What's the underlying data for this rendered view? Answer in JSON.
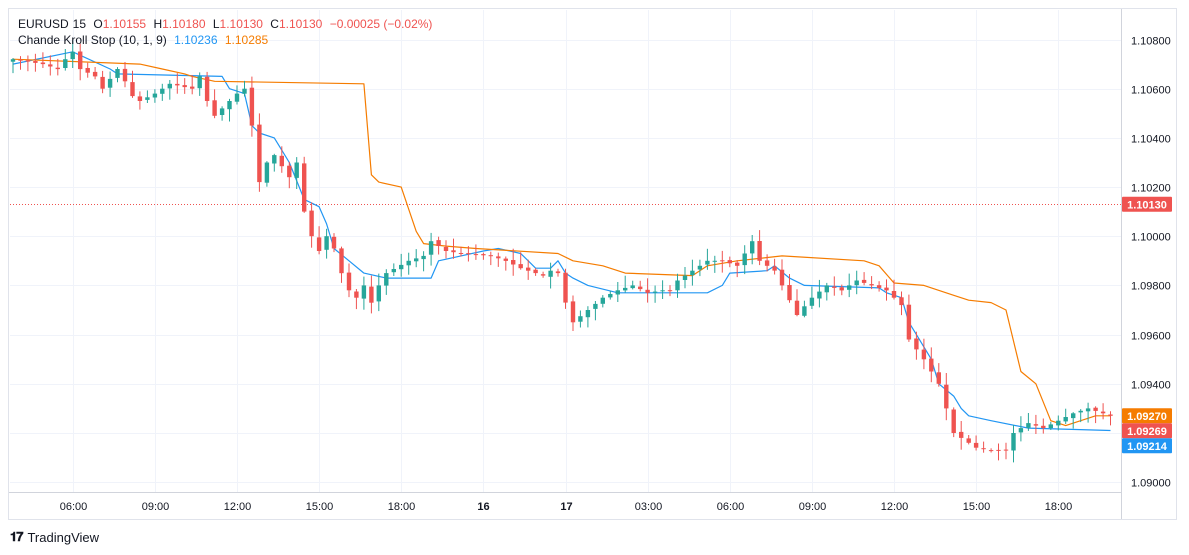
{
  "header": {
    "symbol": "EURUSD",
    "interval": "15",
    "open_label": "O",
    "open": "1.10155",
    "high_label": "H",
    "high": "1.10180",
    "low_label": "L",
    "low": "1.10130",
    "close_label": "C",
    "close": "1.10130",
    "change": "−0.00025 (−0.02%)"
  },
  "indicator": {
    "name": "Chande Kroll Stop (10, 1, 9)",
    "stop_long_value": "1.10236",
    "stop_short_value": "1.10285"
  },
  "branding": {
    "name": "TradingView",
    "icon": "tv-logo-icon"
  },
  "colors": {
    "up": "#26a69a",
    "down": "#ef5350",
    "stop_long": "#2196f3",
    "stop_short": "#f57c00",
    "crosshair_price": "#ef5350"
  },
  "chart_data": {
    "type": "candlestick",
    "ylim": [
      1.0896,
      1.1092
    ],
    "yticks": [
      1.108,
      1.106,
      1.104,
      1.102,
      1.1,
      1.098,
      1.096,
      1.094,
      1.092,
      1.09
    ],
    "ytick_labels": [
      "1.10800",
      "1.10600",
      "1.10400",
      "1.10200",
      "1.10000",
      "1.09800",
      "1.09600",
      "1.09400",
      "1.09200",
      "1.09000"
    ],
    "xlim": [
      0,
      148
    ],
    "xticks": [
      {
        "index": 8,
        "label": "06:00",
        "bold": false
      },
      {
        "index": 19,
        "label": "09:00",
        "bold": false
      },
      {
        "index": 30,
        "label": "12:00",
        "bold": false
      },
      {
        "index": 41,
        "label": "15:00",
        "bold": false
      },
      {
        "index": 52,
        "label": "18:00",
        "bold": false
      },
      {
        "index": 63,
        "label": "16",
        "bold": true
      },
      {
        "index": 74,
        "label": "17",
        "bold": true
      },
      {
        "index": 85,
        "label": "03:00",
        "bold": false
      },
      {
        "index": 96,
        "label": "06:00",
        "bold": false
      },
      {
        "index": 107,
        "label": "09:00",
        "bold": false
      },
      {
        "index": 118,
        "label": "12:00",
        "bold": false
      },
      {
        "index": 129,
        "label": "15:00",
        "bold": false
      },
      {
        "index": 140,
        "label": "18:00",
        "bold": false
      }
    ],
    "crosshair_price": 1.1013,
    "crosshair_label": "1.10130",
    "price_labels": [
      {
        "label": "1.09270",
        "value": 1.0927,
        "color": "#f57c00"
      },
      {
        "label": "1.09269",
        "value": 1.09269,
        "color": "#ef5350"
      },
      {
        "label": "1.09214",
        "value": 1.09214,
        "color": "#2196f3"
      }
    ],
    "close_anchors": [
      [
        0,
        1.1072
      ],
      [
        4,
        1.107
      ],
      [
        6,
        1.1068
      ],
      [
        7,
        1.1072
      ],
      [
        8,
        1.1075
      ],
      [
        9,
        1.1068
      ],
      [
        11,
        1.1065
      ],
      [
        12,
        1.106
      ],
      [
        14,
        1.1068
      ],
      [
        15,
        1.1063
      ],
      [
        16,
        1.1057
      ],
      [
        17,
        1.1055
      ],
      [
        19,
        1.1058
      ],
      [
        21,
        1.1062
      ],
      [
        24,
        1.106
      ],
      [
        25,
        1.1065
      ],
      [
        26,
        1.1055
      ],
      [
        27,
        1.1049
      ],
      [
        29,
        1.1055
      ],
      [
        30,
        1.1058
      ],
      [
        31,
        1.106
      ],
      [
        32,
        1.1045
      ],
      [
        33,
        1.1022
      ],
      [
        34,
        1.103
      ],
      [
        35,
        1.1033
      ],
      [
        37,
        1.1024
      ],
      [
        38,
        1.103
      ],
      [
        39,
        1.101
      ],
      [
        40,
        1.1
      ],
      [
        41,
        1.0994
      ],
      [
        42,
        1.1
      ],
      [
        43,
        1.0995
      ],
      [
        44,
        1.0985
      ],
      [
        45,
        1.0978
      ],
      [
        46,
        1.0975
      ],
      [
        47,
        1.098
      ],
      [
        48,
        1.0973
      ],
      [
        49,
        1.098
      ],
      [
        50,
        1.0985
      ],
      [
        53,
        1.099
      ],
      [
        55,
        1.0992
      ],
      [
        56,
        1.0998
      ],
      [
        58,
        1.0994
      ],
      [
        60,
        1.0993
      ],
      [
        64,
        1.0992
      ],
      [
        66,
        1.099
      ],
      [
        68,
        1.0987
      ],
      [
        71,
        1.0984
      ],
      [
        72,
        1.0986
      ],
      [
        73,
        1.0985
      ],
      [
        74,
        1.0973
      ],
      [
        75,
        1.0965
      ],
      [
        77,
        1.097
      ],
      [
        79,
        1.0975
      ],
      [
        81,
        1.0978
      ],
      [
        83,
        1.098
      ],
      [
        85,
        1.0977
      ],
      [
        87,
        1.0978
      ],
      [
        88,
        1.0978
      ],
      [
        89,
        1.0982
      ],
      [
        91,
        1.0986
      ],
      [
        93,
        1.099
      ],
      [
        95,
        1.099
      ],
      [
        97,
        1.0988
      ],
      [
        99,
        1.0998
      ],
      [
        100,
        1.099
      ],
      [
        102,
        1.0986
      ],
      [
        103,
        1.098
      ],
      [
        105,
        1.0968
      ],
      [
        107,
        1.0975
      ],
      [
        109,
        1.098
      ],
      [
        111,
        1.0978
      ],
      [
        113,
        1.0982
      ],
      [
        115,
        1.098
      ],
      [
        117,
        1.0978
      ],
      [
        119,
        1.0972
      ],
      [
        120,
        1.0958
      ],
      [
        122,
        1.095
      ],
      [
        124,
        1.094
      ],
      [
        125,
        1.093
      ],
      [
        126,
        1.092
      ],
      [
        127,
        1.0918
      ],
      [
        129,
        1.0914
      ],
      [
        131,
        1.0913
      ],
      [
        133,
        1.0913
      ],
      [
        134,
        1.092
      ],
      [
        136,
        1.0924
      ],
      [
        138,
        1.0922
      ],
      [
        140,
        1.0925
      ],
      [
        142,
        1.0928
      ],
      [
        144,
        1.093
      ],
      [
        146,
        1.0928
      ],
      [
        147,
        1.0927
      ]
    ],
    "series": [
      {
        "name": "stop long",
        "color": "#2196f3",
        "points": [
          [
            0,
            1.107
          ],
          [
            8,
            1.1075
          ],
          [
            13,
            1.1068
          ],
          [
            14,
            1.1066
          ],
          [
            28,
            1.1065
          ],
          [
            29,
            1.106
          ],
          [
            31,
            1.1058
          ],
          [
            32,
            1.1045
          ],
          [
            33,
            1.1042
          ],
          [
            35,
            1.104
          ],
          [
            36,
            1.1035
          ],
          [
            37,
            1.103
          ],
          [
            39,
            1.1015
          ],
          [
            41,
            1.1012
          ],
          [
            42,
            1.1005
          ],
          [
            43,
            1.0995
          ],
          [
            45,
            1.099
          ],
          [
            47,
            1.0985
          ],
          [
            50,
            1.0983
          ],
          [
            56,
            1.0983
          ],
          [
            57,
            1.099
          ],
          [
            60,
            1.0992
          ],
          [
            63,
            1.0994
          ],
          [
            65,
            1.0995
          ],
          [
            68,
            1.0993
          ],
          [
            69,
            1.099
          ],
          [
            70,
            1.0987
          ],
          [
            72,
            1.0987
          ],
          [
            73,
            1.099
          ],
          [
            74,
            1.0985
          ],
          [
            75,
            1.0983
          ],
          [
            77,
            1.098
          ],
          [
            81,
            1.0977
          ],
          [
            93,
            1.0977
          ],
          [
            95,
            1.098
          ],
          [
            96,
            1.0985
          ],
          [
            101,
            1.0986
          ],
          [
            102,
            1.0988
          ],
          [
            104,
            1.0983
          ],
          [
            106,
            1.098
          ],
          [
            116,
            1.0979
          ],
          [
            117,
            1.0977
          ],
          [
            119,
            1.0975
          ],
          [
            120,
            1.0965
          ],
          [
            121,
            1.096
          ],
          [
            123,
            1.095
          ],
          [
            124,
            1.094
          ],
          [
            126,
            1.0935
          ],
          [
            127,
            1.093
          ],
          [
            128,
            1.0927
          ],
          [
            131,
            1.0925
          ],
          [
            136,
            1.0922
          ],
          [
            147,
            1.0921
          ]
        ]
      },
      {
        "name": "stop short",
        "color": "#f57c00",
        "points": [
          [
            0,
            1.1072
          ],
          [
            17,
            1.107
          ],
          [
            20,
            1.1068
          ],
          [
            23,
            1.1066
          ],
          [
            24,
            1.1065
          ],
          [
            27,
            1.1063
          ],
          [
            47,
            1.1062
          ],
          [
            48,
            1.1025
          ],
          [
            49,
            1.1022
          ],
          [
            52,
            1.102
          ],
          [
            54,
            1.1002
          ],
          [
            55,
            1.0997
          ],
          [
            58,
            1.0996
          ],
          [
            62,
            1.0995
          ],
          [
            73,
            1.0993
          ],
          [
            75,
            1.099
          ],
          [
            79,
            1.0988
          ],
          [
            82,
            1.0985
          ],
          [
            91,
            1.0984
          ],
          [
            93,
            1.0988
          ],
          [
            97,
            1.099
          ],
          [
            100,
            1.0991
          ],
          [
            103,
            1.0992
          ],
          [
            114,
            1.099
          ],
          [
            116,
            1.0988
          ],
          [
            118,
            1.0981
          ],
          [
            122,
            1.098
          ],
          [
            126,
            1.0976
          ],
          [
            128,
            1.0974
          ],
          [
            131,
            1.0973
          ],
          [
            133,
            1.097
          ],
          [
            135,
            1.0945
          ],
          [
            137,
            1.094
          ],
          [
            139,
            1.0925
          ],
          [
            141,
            1.0923
          ],
          [
            145,
            1.0927
          ],
          [
            147,
            1.0927
          ]
        ]
      }
    ]
  }
}
